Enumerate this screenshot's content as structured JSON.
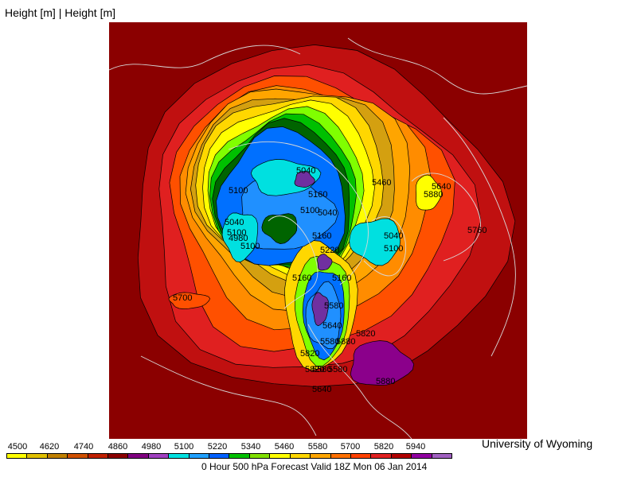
{
  "header": {
    "title": "Height [m] | Height [m]"
  },
  "credit": "University of Wyoming",
  "caption": "0 Hour 500 hPa Forecast Valid 18Z Mon 06 Jan 2014",
  "legend": {
    "labels": [
      "4500",
      "4620",
      "4740",
      "4860",
      "4980",
      "5100",
      "5220",
      "5340",
      "5460",
      "5580",
      "5700",
      "5820",
      "5940"
    ],
    "colors": [
      "#ffff00",
      "#e0c000",
      "#c08000",
      "#d05000",
      "#c02000",
      "#8b0000",
      "#800080",
      "#a040c0",
      "#00e0e0",
      "#20a0ff",
      "#0060ff",
      "#00c000",
      "#80e000",
      "#ffff00",
      "#ffd700",
      "#ffa500",
      "#ff7000",
      "#ff4000",
      "#e02020",
      "#b00000",
      "#9000a0",
      "#a060c0"
    ]
  },
  "map": {
    "palette": {
      "background": "#8b0000",
      "ring1": "#c01010",
      "ring2": "#e02020",
      "ring3": "#ff5000",
      "ring4": "#ff8c00",
      "ring5": "#ffa500",
      "ring6": "#d4a010",
      "ring7": "#ffd700",
      "ring8": "#ffff00",
      "ring9": "#80ff00",
      "ring10": "#00c000",
      "ring11": "#006400",
      "ring12": "#0070ff",
      "ring13": "#2090ff",
      "ring14": "#00e0e0",
      "ring15": "#7030a0",
      "tropical_high": "#8b008b",
      "coast": "#d8d8d8"
    },
    "contour_labels": [
      "5100",
      "5040",
      "4980",
      "5100",
      "5100",
      "5160",
      "5040",
      "5100",
      "5040",
      "5760",
      "5160",
      "5220",
      "5040",
      "5100",
      "5160",
      "5700",
      "5580",
      "5640",
      "5580",
      "5820",
      "5580",
      "5880",
      "5580",
      "5640",
      "5820",
      "5820",
      "5880",
      "5460",
      "5160",
      "5640",
      "5880"
    ]
  }
}
